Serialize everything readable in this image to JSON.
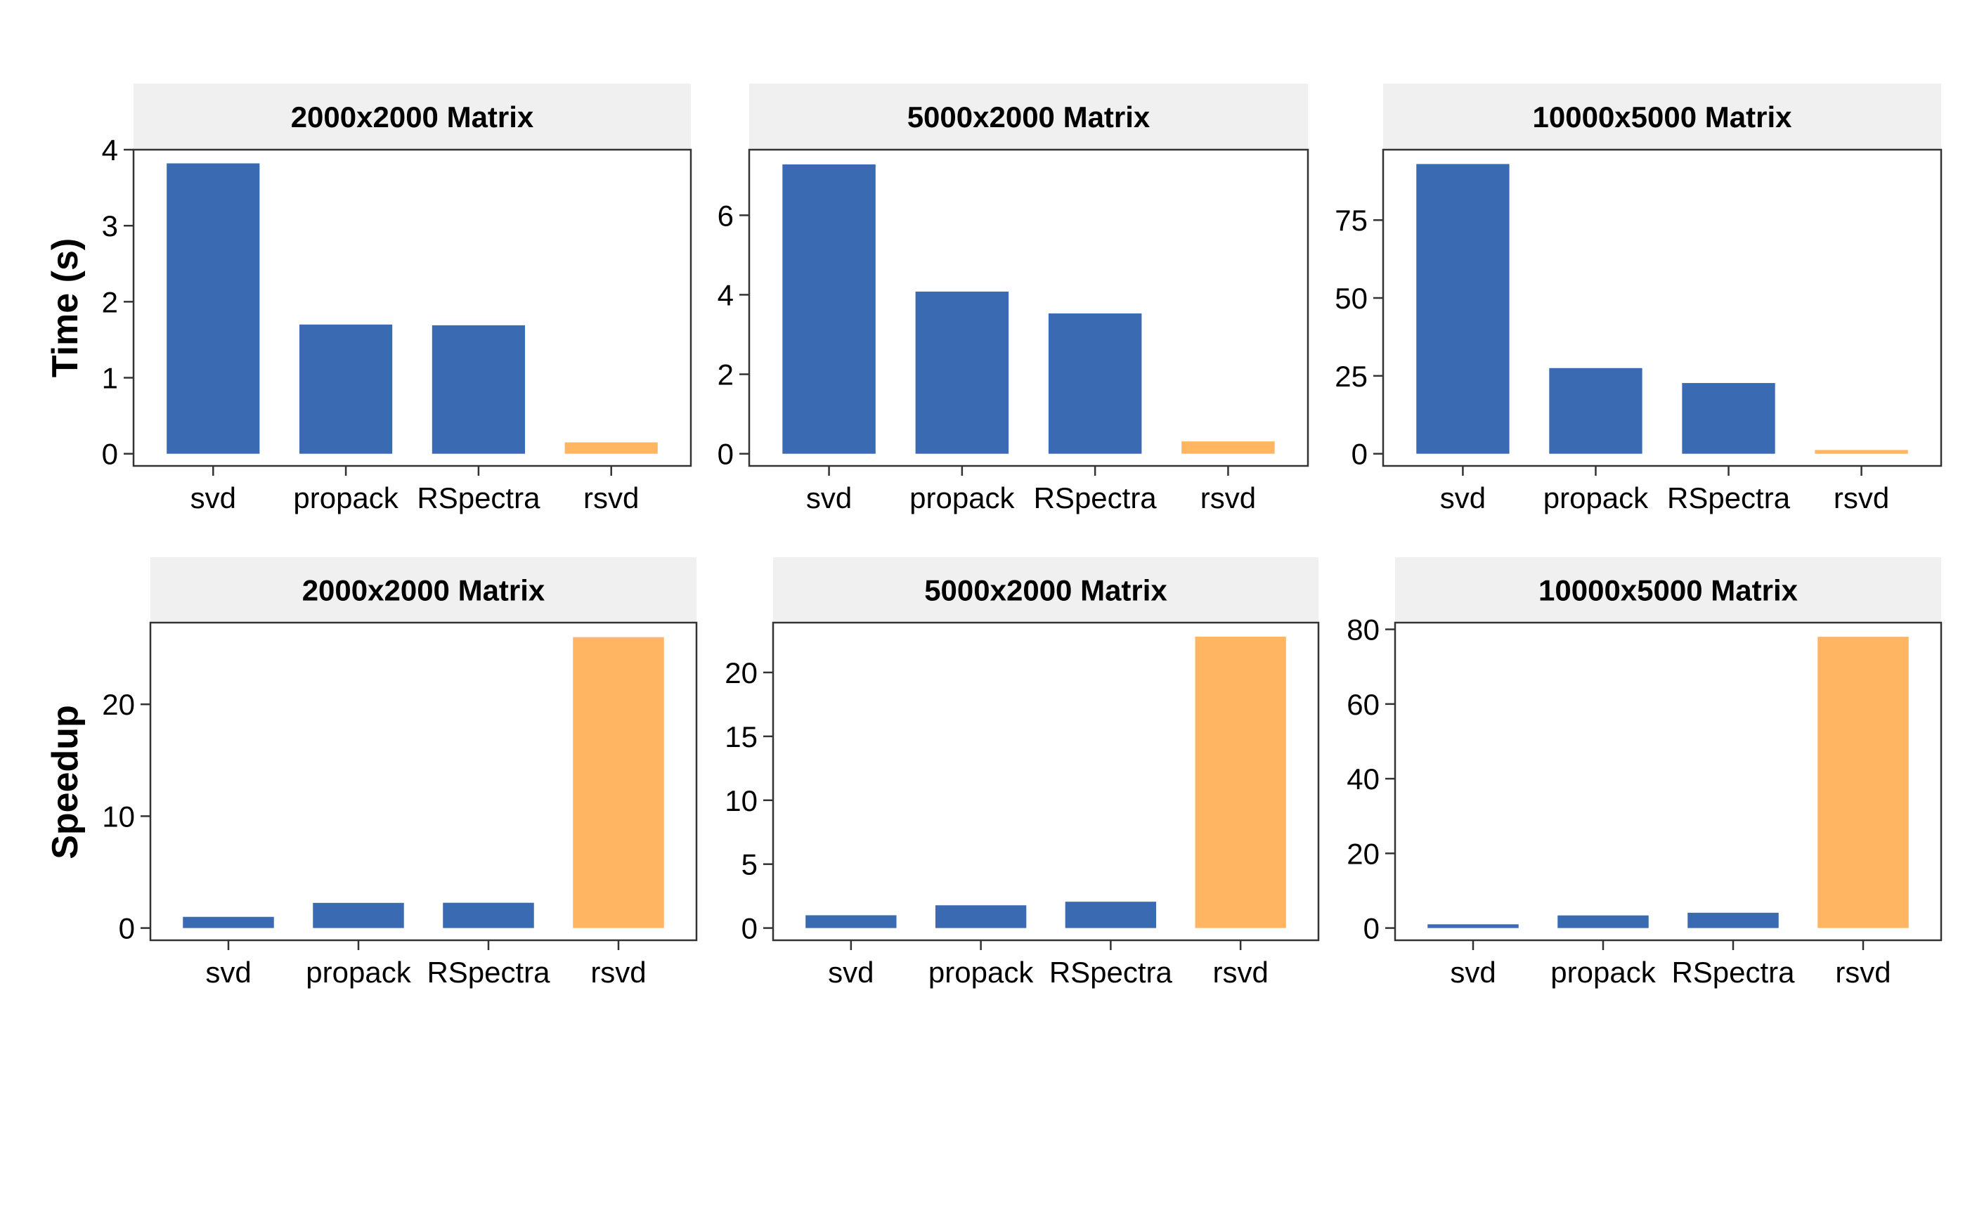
{
  "colors": {
    "baseline": "#3a6bb2",
    "rsvd": "#ffb562",
    "strip_bg": "#f0f0f0",
    "panel_border": "#333333"
  },
  "rows": [
    {
      "ylabel": "Time (s)"
    },
    {
      "ylabel": "Speedup"
    }
  ],
  "chart_data": [
    {
      "type": "bar",
      "title": "2000x2000 Matrix",
      "ylabel": "Time (s)",
      "categories": [
        "svd",
        "propack",
        "RSpectra",
        "rsvd"
      ],
      "values": [
        3.82,
        1.7,
        1.69,
        0.15
      ],
      "ylim": [
        0,
        4
      ],
      "yticks": [
        0,
        1,
        2,
        3,
        4
      ],
      "highlight": "rsvd",
      "grid": false
    },
    {
      "type": "bar",
      "title": "5000x2000 Matrix",
      "ylabel": "",
      "categories": [
        "svd",
        "propack",
        "RSpectra",
        "rsvd"
      ],
      "values": [
        7.28,
        4.08,
        3.53,
        0.31
      ],
      "ylim": [
        0,
        7.65
      ],
      "yticks": [
        0,
        2,
        4,
        6
      ],
      "highlight": "rsvd",
      "grid": false
    },
    {
      "type": "bar",
      "title": "10000x5000 Matrix",
      "ylabel": "",
      "categories": [
        "svd",
        "propack",
        "RSpectra",
        "rsvd"
      ],
      "values": [
        93.0,
        27.5,
        22.7,
        1.2
      ],
      "ylim": [
        0,
        97.6
      ],
      "yticks": [
        0,
        25,
        50,
        75
      ],
      "highlight": "rsvd",
      "grid": false
    },
    {
      "type": "bar",
      "title": "2000x2000 Matrix",
      "ylabel": "Speedup",
      "categories": [
        "svd",
        "propack",
        "RSpectra",
        "rsvd"
      ],
      "values": [
        1.0,
        2.25,
        2.26,
        26.0
      ],
      "ylim": [
        0,
        27.3
      ],
      "yticks": [
        0,
        10,
        20
      ],
      "highlight": "rsvd",
      "grid": false
    },
    {
      "type": "bar",
      "title": "5000x2000 Matrix",
      "ylabel": "",
      "categories": [
        "svd",
        "propack",
        "RSpectra",
        "rsvd"
      ],
      "values": [
        1.0,
        1.78,
        2.06,
        22.8
      ],
      "ylim": [
        0,
        23.9
      ],
      "yticks": [
        0,
        5,
        10,
        15,
        20
      ],
      "highlight": "rsvd",
      "grid": false
    },
    {
      "type": "bar",
      "title": "10000x5000 Matrix",
      "ylabel": "",
      "categories": [
        "svd",
        "propack",
        "RSpectra",
        "rsvd"
      ],
      "values": [
        1.0,
        3.38,
        4.1,
        78.0
      ],
      "ylim": [
        0,
        81.8
      ],
      "yticks": [
        0,
        20,
        40,
        60,
        80
      ],
      "highlight": "rsvd",
      "grid": false
    }
  ]
}
